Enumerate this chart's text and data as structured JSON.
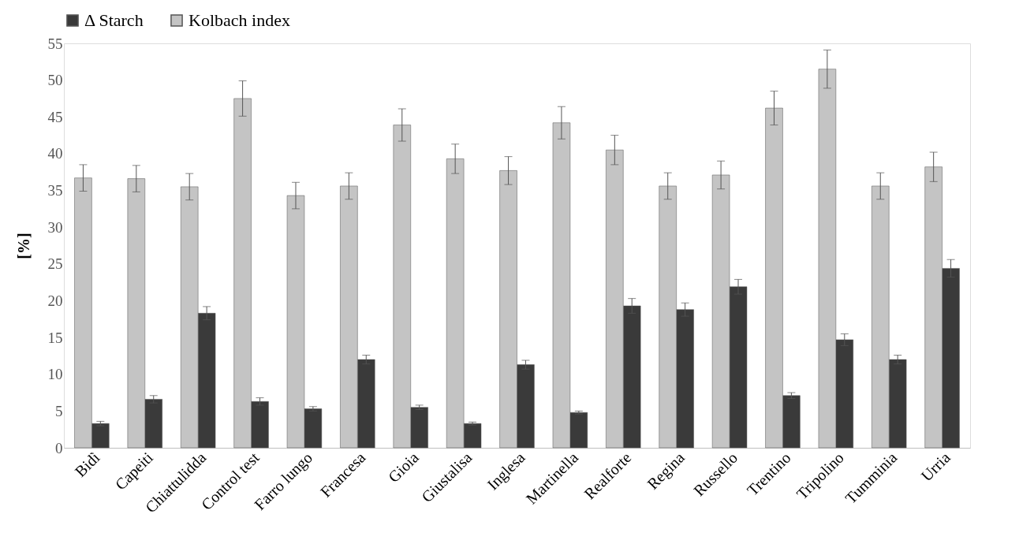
{
  "chart_data": {
    "type": "bar",
    "ylabel": "[%]",
    "categories": [
      "Bidì",
      "Capeiti",
      "Chiattulidda",
      "Control test",
      "Farro lungo",
      "Francesa",
      "Gioia",
      "Giustalisa",
      "Inglesa",
      "Martinella",
      "Realforte",
      "Regina",
      "Russello",
      "Trentino",
      "Tripolino",
      "Tumminia",
      "Urria"
    ],
    "series": [
      {
        "name": "Δ Starch",
        "color": "#3a3a3a",
        "values": [
          3.3,
          6.6,
          18.3,
          6.3,
          5.3,
          12.0,
          5.5,
          3.3,
          11.3,
          4.8,
          19.3,
          18.8,
          21.9,
          7.1,
          14.7,
          12.0,
          24.4
        ],
        "errors": [
          0.3,
          0.5,
          0.9,
          0.5,
          0.3,
          0.6,
          0.3,
          0.2,
          0.6,
          0.2,
          1.0,
          0.9,
          1.0,
          0.4,
          0.8,
          0.6,
          1.2
        ]
      },
      {
        "name": "Kolbach index",
        "color": "#c4c4c4",
        "values": [
          36.7,
          36.6,
          35.5,
          47.5,
          34.3,
          35.6,
          43.9,
          39.3,
          37.7,
          44.2,
          40.5,
          35.6,
          37.1,
          46.2,
          51.5,
          35.6,
          38.2
        ],
        "errors": [
          1.8,
          1.8,
          1.8,
          2.4,
          1.8,
          1.8,
          2.2,
          2.0,
          1.9,
          2.2,
          2.0,
          1.8,
          1.9,
          2.3,
          2.6,
          1.8,
          2.0
        ]
      }
    ],
    "ylim": [
      0,
      55
    ],
    "yticks": [
      0,
      5,
      10,
      15,
      20,
      25,
      30,
      35,
      40,
      45,
      50,
      55
    ],
    "grid": false,
    "legend": "top"
  }
}
